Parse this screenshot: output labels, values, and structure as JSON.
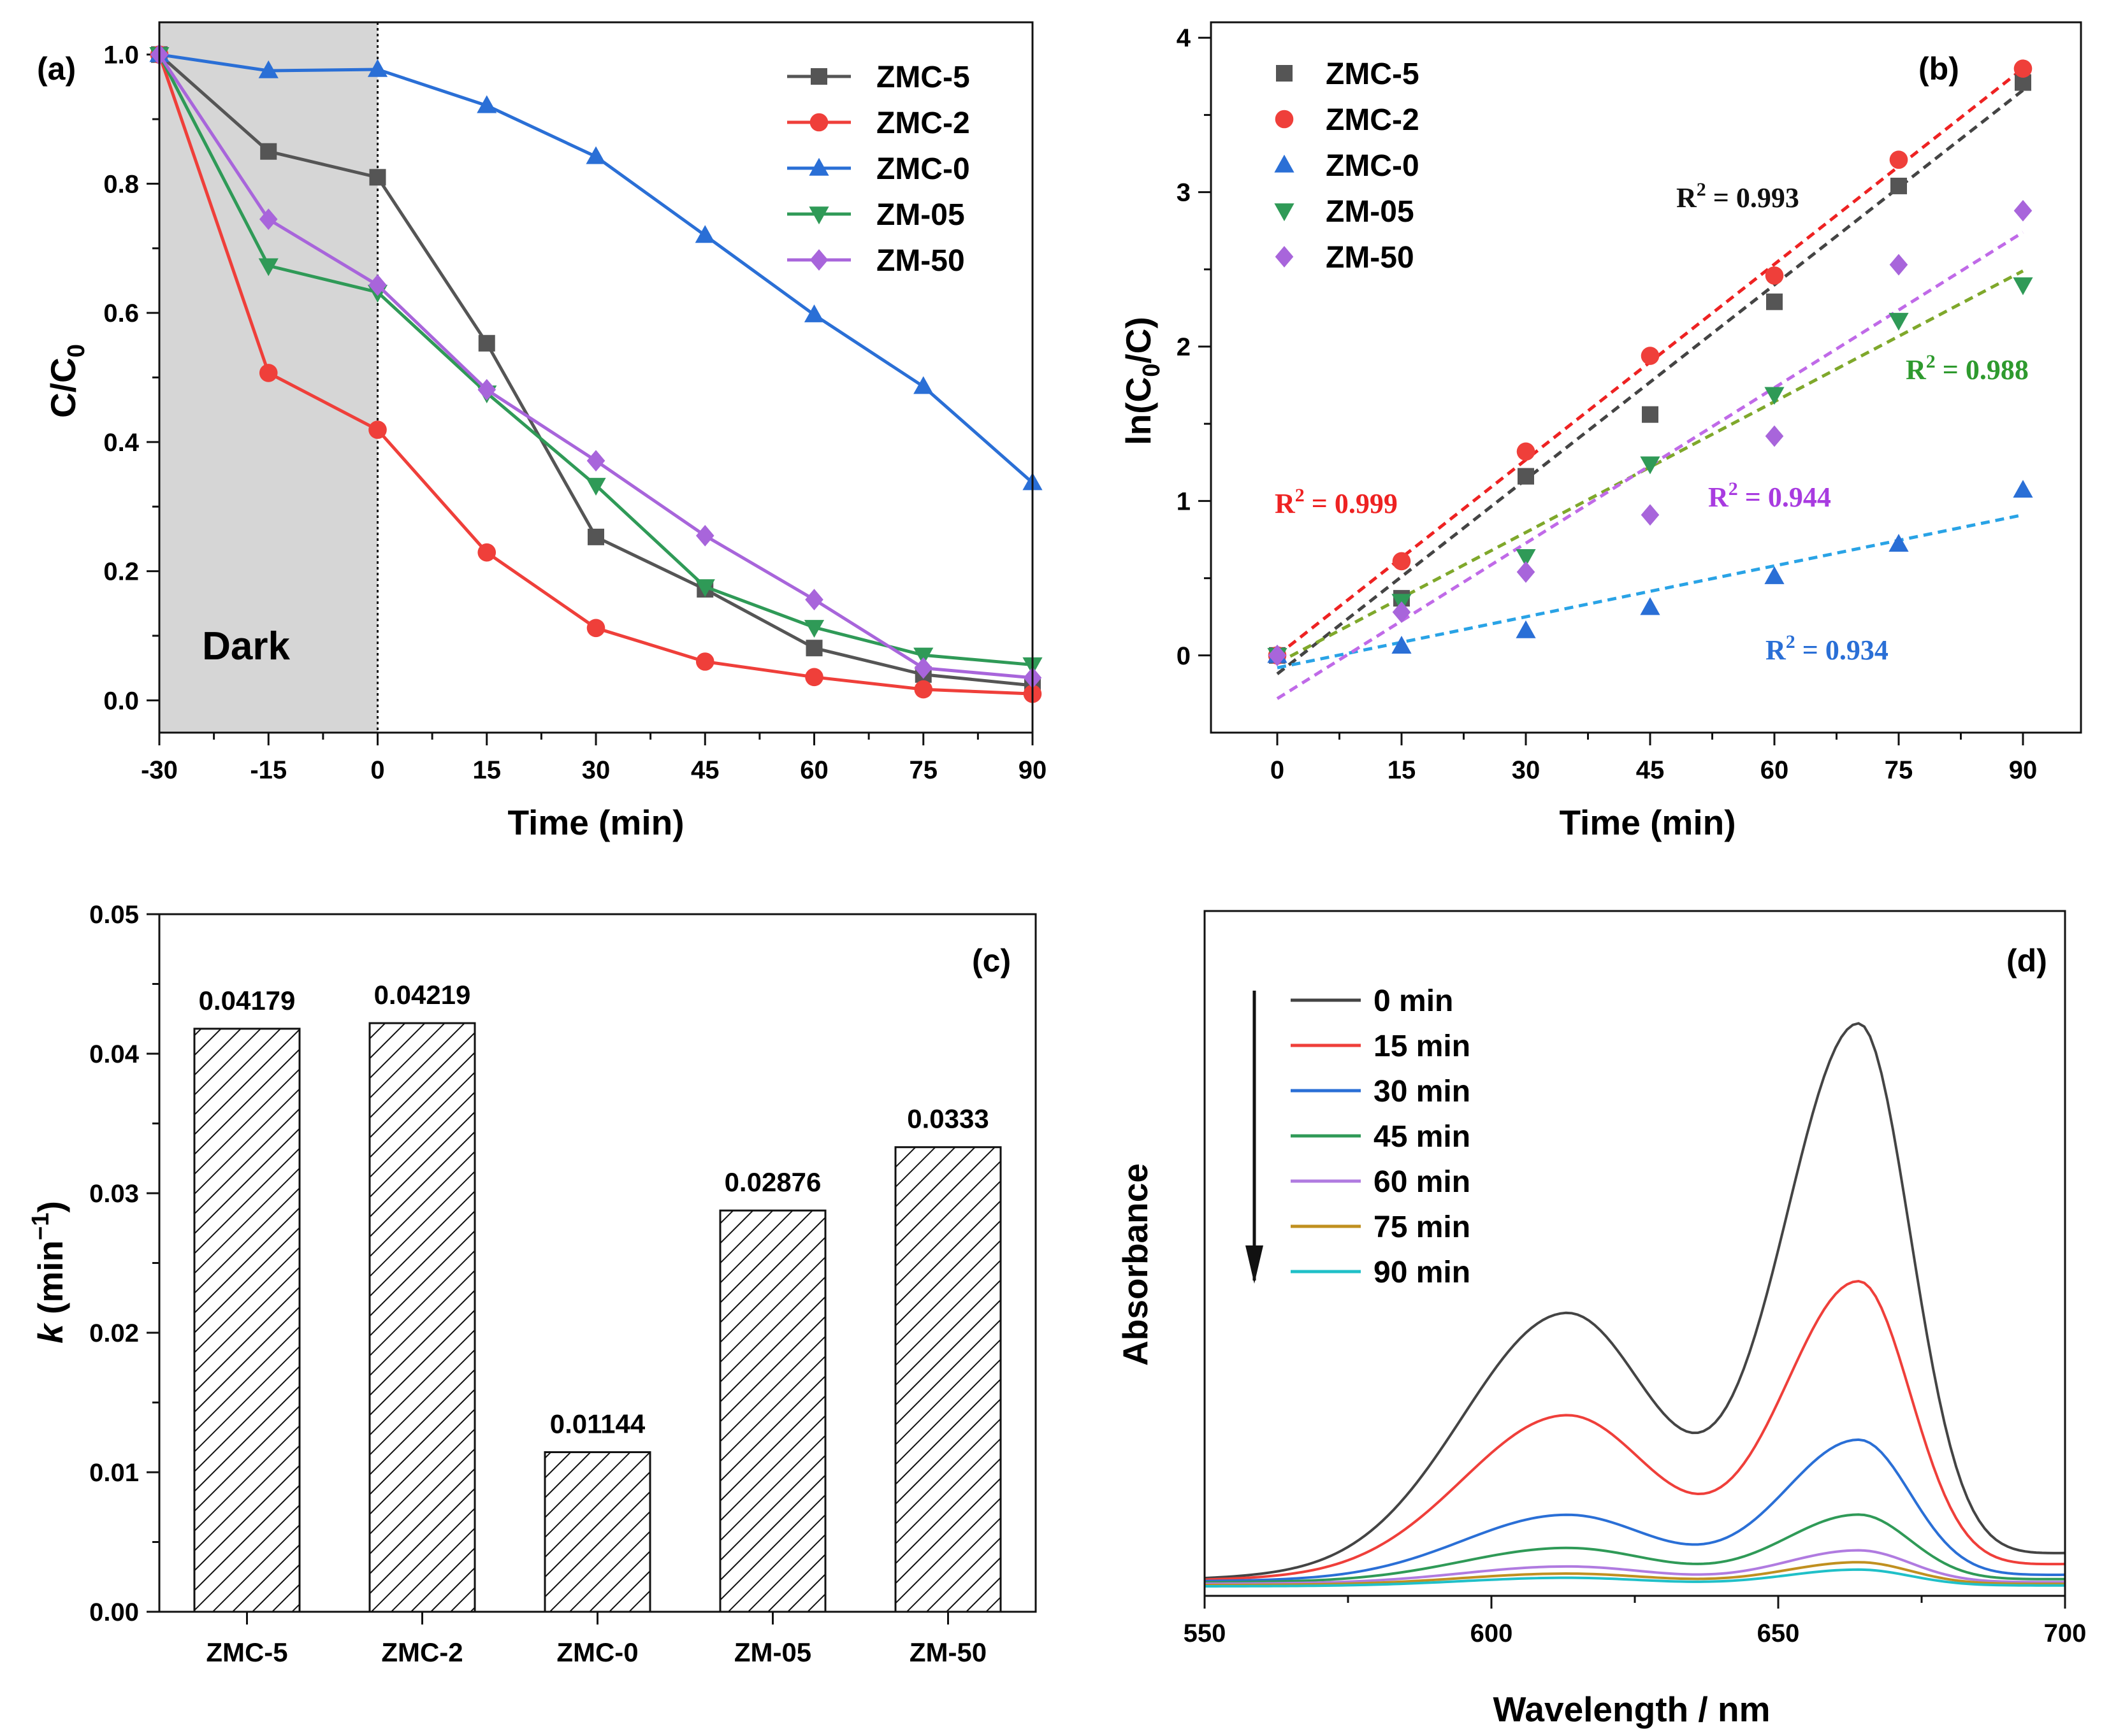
{
  "chart_data": [
    {
      "panel_label": "(a)",
      "type": "line",
      "xlabel": "Time (min)",
      "ylabel_main": "C/C",
      "ylabel_sub": "0",
      "xlim": [
        -30,
        90
      ],
      "ylim": [
        -0.05,
        1.05
      ],
      "xticks": [
        "-30",
        "-15",
        "0",
        "15",
        "30",
        "45",
        "60",
        "75",
        "90"
      ],
      "yticks": [
        "0.0",
        "0.2",
        "0.4",
        "0.6",
        "0.8",
        "1.0"
      ],
      "dark_region": {
        "from": -30,
        "to": 0,
        "label": "Dark"
      },
      "legend_position": "top-right",
      "x": [
        -30,
        -15,
        0,
        15,
        30,
        45,
        60,
        75,
        90
      ],
      "series": [
        {
          "name": "ZMC-5",
          "color": "#555555",
          "marker": "square",
          "values": [
            1.0,
            0.85,
            0.81,
            0.553,
            0.253,
            0.172,
            0.081,
            0.04,
            0.023
          ]
        },
        {
          "name": "ZMC-2",
          "color": "#ef3f3a",
          "marker": "circle",
          "values": [
            1.0,
            0.507,
            0.419,
            0.229,
            0.112,
            0.06,
            0.036,
            0.017,
            0.01
          ]
        },
        {
          "name": "ZMC-0",
          "color": "#2a6fd6",
          "marker": "triangle",
          "values": [
            1.0,
            0.975,
            0.977,
            0.921,
            0.842,
            0.72,
            0.597,
            0.486,
            0.337
          ]
        },
        {
          "name": "ZM-05",
          "color": "#2f9a57",
          "marker": "triangle-down",
          "values": [
            1.0,
            0.673,
            0.632,
            0.476,
            0.333,
            0.176,
            0.113,
            0.07,
            0.055
          ]
        },
        {
          "name": "ZM-50",
          "color": "#a865db",
          "marker": "diamond",
          "values": [
            1.0,
            0.745,
            0.643,
            0.481,
            0.371,
            0.255,
            0.156,
            0.05,
            0.035
          ]
        }
      ]
    },
    {
      "panel_label": "(b)",
      "type": "scatter",
      "xlabel": "Time (min)",
      "ylabel_pre": "ln(C",
      "ylabel_sub": "0",
      "ylabel_post": "/C)",
      "xlim": [
        -8,
        97
      ],
      "ylim": [
        -0.5,
        4.1
      ],
      "xticks": [
        "0",
        "15",
        "30",
        "45",
        "60",
        "75",
        "90"
      ],
      "yticks": [
        "0",
        "1",
        "2",
        "3",
        "4"
      ],
      "legend_position": "top-left",
      "x": [
        0,
        15,
        30,
        45,
        60,
        75,
        90
      ],
      "series": [
        {
          "name": "ZMC-5",
          "color": "#555555",
          "marker": "square",
          "values": [
            0,
            0.37,
            1.16,
            1.56,
            2.29,
            3.04,
            3.71
          ],
          "fit": [
            -0.12,
            3.66
          ],
          "r2_label": "R",
          "r2_exp": "2",
          "r2_value": " = 0.993",
          "r2_color": "#111111"
        },
        {
          "name": "ZMC-2",
          "color": "#ef3f3a",
          "marker": "circle",
          "values": [
            0,
            0.61,
            1.32,
            1.94,
            2.46,
            3.21,
            3.8
          ],
          "fit": [
            0.0,
            3.8
          ],
          "r2_label": "R",
          "r2_exp": "2",
          "r2_value": " = 0.999",
          "r2_color": "#ee2222"
        },
        {
          "name": "ZMC-0",
          "color": "#2a6fd6",
          "marker": "triangle",
          "values": [
            0,
            0.06,
            0.16,
            0.31,
            0.51,
            0.72,
            1.07
          ],
          "fit": [
            -0.08,
            0.91
          ],
          "r2_label": "R",
          "r2_exp": "2",
          "r2_value": " = 0.934",
          "r2_color": "#2a6fd6"
        },
        {
          "name": "ZM-05",
          "color": "#2f9a57",
          "marker": "triangle-down",
          "values": [
            0,
            0.35,
            0.64,
            1.24,
            1.69,
            2.17,
            2.4
          ],
          "fit": [
            -0.05,
            2.49
          ],
          "r2_label": "R",
          "r2_exp": "2",
          "r2_value": " = 0.988",
          "r2_color": "#2e9a2e"
        },
        {
          "name": "ZM-50",
          "color": "#a865db",
          "marker": "diamond",
          "values": [
            0,
            0.28,
            0.54,
            0.91,
            1.42,
            2.53,
            2.88
          ],
          "fit": [
            -0.28,
            2.74
          ],
          "r2_label": "R",
          "r2_exp": "2",
          "r2_value": " = 0.944",
          "r2_color": "#a83be0"
        }
      ],
      "fit_colors": {
        "ZMC-5": "#444444",
        "ZMC-2": "#ee2222",
        "ZMC-0": "#29a3e6",
        "ZM-05": "#7fa82b",
        "ZM-50": "#c06ae8"
      }
    },
    {
      "panel_label": "(c)",
      "type": "bar",
      "ylabel_italic": "k",
      "ylabel_rest": " (min",
      "ylabel_sup": "−1",
      "ylabel_end": ")",
      "ylim": [
        0,
        0.05
      ],
      "yticks": [
        "0.00",
        "0.01",
        "0.02",
        "0.03",
        "0.04",
        "0.05"
      ],
      "categories": [
        "ZMC-5",
        "ZMC-2",
        "ZMC-0",
        "ZM-05",
        "ZM-50"
      ],
      "values": [
        0.04179,
        0.04219,
        0.01144,
        0.02876,
        0.0333
      ],
      "value_labels": [
        "0.04179",
        "0.04219",
        "0.01144",
        "0.02876",
        "0.0333"
      ],
      "pattern": "diagonal-hatch"
    },
    {
      "panel_label": "(d)",
      "type": "line",
      "xlabel": "Wavelength / nm",
      "ylabel": "Absorbance",
      "xlim": [
        550,
        700
      ],
      "xticks": [
        "550",
        "600",
        "650",
        "700"
      ],
      "legend_position": "top-left",
      "series": [
        {
          "name": "0 min",
          "color": "#444444",
          "band1": 1.0,
          "band2": 1.0,
          "base": 0.012
        },
        {
          "name": "15 min",
          "color": "#ef3f3a",
          "band1": 0.62,
          "band2": 0.535,
          "base": 0.01
        },
        {
          "name": "30 min",
          "color": "#2a6fd6",
          "band1": 0.25,
          "band2": 0.255,
          "base": 0.008
        },
        {
          "name": "45 min",
          "color": "#2f9a57",
          "band1": 0.13,
          "band2": 0.122,
          "base": 0.006
        },
        {
          "name": "60 min",
          "color": "#b07be0",
          "band1": 0.065,
          "band2": 0.06,
          "base": 0.004
        },
        {
          "name": "75 min",
          "color": "#c09020",
          "band1": 0.043,
          "band2": 0.041,
          "base": 0.002
        },
        {
          "name": "90 min",
          "color": "#20c0c8",
          "band1": 0.032,
          "band2": 0.03,
          "base": 0.0
        }
      ]
    }
  ]
}
